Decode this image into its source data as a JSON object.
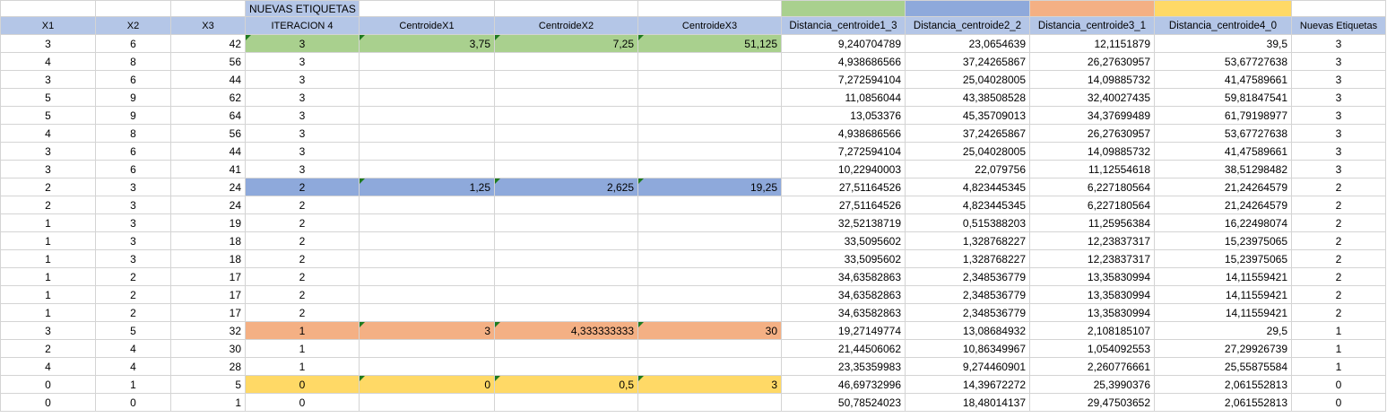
{
  "title_cell": "NUEVAS ETIQUETAS",
  "legend_colors": [
    "#a9d08e",
    "#8ea9db",
    "#f4b084",
    "#ffd966"
  ],
  "headers": [
    "X1",
    "X2",
    "X3",
    "ITERACION 4",
    "CentroideX1",
    "CentroideX2",
    "CentroideX3",
    "Distancia_centroide1_3",
    "Distancia_centroide2_2",
    "Distancia_centroide3_1",
    "Distancia_centroide4_0",
    "Nuevas Etiquetas"
  ],
  "rows": [
    {
      "x1": "3",
      "x2": "6",
      "x3": "42",
      "it": "3",
      "c1": "3,75",
      "c2": "7,25",
      "c3": "51,125",
      "d1": "9,240704789",
      "d2": "23,0654639",
      "d3": "12,1151879",
      "d4": "39,5",
      "ne": "3"
    },
    {
      "x1": "4",
      "x2": "8",
      "x3": "56",
      "it": "3",
      "c1": "",
      "c2": "",
      "c3": "",
      "d1": "4,938686566",
      "d2": "37,24265867",
      "d3": "26,27630957",
      "d4": "53,67727638",
      "ne": "3"
    },
    {
      "x1": "3",
      "x2": "6",
      "x3": "44",
      "it": "3",
      "c1": "",
      "c2": "",
      "c3": "",
      "d1": "7,272594104",
      "d2": "25,04028005",
      "d3": "14,09885732",
      "d4": "41,47589661",
      "ne": "3"
    },
    {
      "x1": "5",
      "x2": "9",
      "x3": "62",
      "it": "3",
      "c1": "",
      "c2": "",
      "c3": "",
      "d1": "11,0856044",
      "d2": "43,38508528",
      "d3": "32,40027435",
      "d4": "59,81847541",
      "ne": "3"
    },
    {
      "x1": "5",
      "x2": "9",
      "x3": "64",
      "it": "3",
      "c1": "",
      "c2": "",
      "c3": "",
      "d1": "13,053376",
      "d2": "45,35709013",
      "d3": "34,37699489",
      "d4": "61,79198977",
      "ne": "3"
    },
    {
      "x1": "4",
      "x2": "8",
      "x3": "56",
      "it": "3",
      "c1": "",
      "c2": "",
      "c3": "",
      "d1": "4,938686566",
      "d2": "37,24265867",
      "d3": "26,27630957",
      "d4": "53,67727638",
      "ne": "3"
    },
    {
      "x1": "3",
      "x2": "6",
      "x3": "44",
      "it": "3",
      "c1": "",
      "c2": "",
      "c3": "",
      "d1": "7,272594104",
      "d2": "25,04028005",
      "d3": "14,09885732",
      "d4": "41,47589661",
      "ne": "3"
    },
    {
      "x1": "3",
      "x2": "6",
      "x3": "41",
      "it": "3",
      "c1": "",
      "c2": "",
      "c3": "",
      "d1": "10,22940003",
      "d2": "22,079756",
      "d3": "11,12554618",
      "d4": "38,51298482",
      "ne": "3"
    },
    {
      "x1": "2",
      "x2": "3",
      "x3": "24",
      "it": "2",
      "c1": "1,25",
      "c2": "2,625",
      "c3": "19,25",
      "d1": "27,51164526",
      "d2": "4,823445345",
      "d3": "6,227180564",
      "d4": "21,24264579",
      "ne": "2"
    },
    {
      "x1": "2",
      "x2": "3",
      "x3": "24",
      "it": "2",
      "c1": "",
      "c2": "",
      "c3": "",
      "d1": "27,51164526",
      "d2": "4,823445345",
      "d3": "6,227180564",
      "d4": "21,24264579",
      "ne": "2"
    },
    {
      "x1": "1",
      "x2": "3",
      "x3": "19",
      "it": "2",
      "c1": "",
      "c2": "",
      "c3": "",
      "d1": "32,52138719",
      "d2": "0,515388203",
      "d3": "11,25956384",
      "d4": "16,22498074",
      "ne": "2"
    },
    {
      "x1": "1",
      "x2": "3",
      "x3": "18",
      "it": "2",
      "c1": "",
      "c2": "",
      "c3": "",
      "d1": "33,5095602",
      "d2": "1,328768227",
      "d3": "12,23837317",
      "d4": "15,23975065",
      "ne": "2"
    },
    {
      "x1": "1",
      "x2": "3",
      "x3": "18",
      "it": "2",
      "c1": "",
      "c2": "",
      "c3": "",
      "d1": "33,5095602",
      "d2": "1,328768227",
      "d3": "12,23837317",
      "d4": "15,23975065",
      "ne": "2"
    },
    {
      "x1": "1",
      "x2": "2",
      "x3": "17",
      "it": "2",
      "c1": "",
      "c2": "",
      "c3": "",
      "d1": "34,63582863",
      "d2": "2,348536779",
      "d3": "13,35830994",
      "d4": "14,11559421",
      "ne": "2"
    },
    {
      "x1": "1",
      "x2": "2",
      "x3": "17",
      "it": "2",
      "c1": "",
      "c2": "",
      "c3": "",
      "d1": "34,63582863",
      "d2": "2,348536779",
      "d3": "13,35830994",
      "d4": "14,11559421",
      "ne": "2"
    },
    {
      "x1": "1",
      "x2": "2",
      "x3": "17",
      "it": "2",
      "c1": "",
      "c2": "",
      "c3": "",
      "d1": "34,63582863",
      "d2": "2,348536779",
      "d3": "13,35830994",
      "d4": "14,11559421",
      "ne": "2"
    },
    {
      "x1": "3",
      "x2": "5",
      "x3": "32",
      "it": "1",
      "c1": "3",
      "c2": "4,333333333",
      "c3": "30",
      "d1": "19,27149774",
      "d2": "13,08684932",
      "d3": "2,108185107",
      "d4": "29,5",
      "ne": "1"
    },
    {
      "x1": "2",
      "x2": "4",
      "x3": "30",
      "it": "1",
      "c1": "",
      "c2": "",
      "c3": "",
      "d1": "21,44506062",
      "d2": "10,86349967",
      "d3": "1,054092553",
      "d4": "27,29926739",
      "ne": "1"
    },
    {
      "x1": "4",
      "x2": "4",
      "x3": "28",
      "it": "1",
      "c1": "",
      "c2": "",
      "c3": "",
      "d1": "23,35359983",
      "d2": "9,274460901",
      "d3": "2,260776661",
      "d4": "25,55875584",
      "ne": "1"
    },
    {
      "x1": "0",
      "x2": "1",
      "x3": "5",
      "it": "0",
      "c1": "0",
      "c2": "0,5",
      "c3": "3",
      "d1": "46,69732996",
      "d2": "14,39672272",
      "d3": "25,3990376",
      "d4": "2,061552813",
      "ne": "0"
    },
    {
      "x1": "0",
      "x2": "0",
      "x3": "1",
      "it": "0",
      "c1": "",
      "c2": "",
      "c3": "",
      "d1": "50,78524023",
      "d2": "18,48014137",
      "d3": "29,47503652",
      "d4": "2,061552813",
      "ne": "0"
    }
  ],
  "highlight_rows": [
    {
      "row": 0,
      "color": "#a9d08e"
    },
    {
      "row": 8,
      "color": "#8ea9db"
    },
    {
      "row": 16,
      "color": "#f4b084"
    },
    {
      "row": 19,
      "color": "#ffd966"
    }
  ]
}
